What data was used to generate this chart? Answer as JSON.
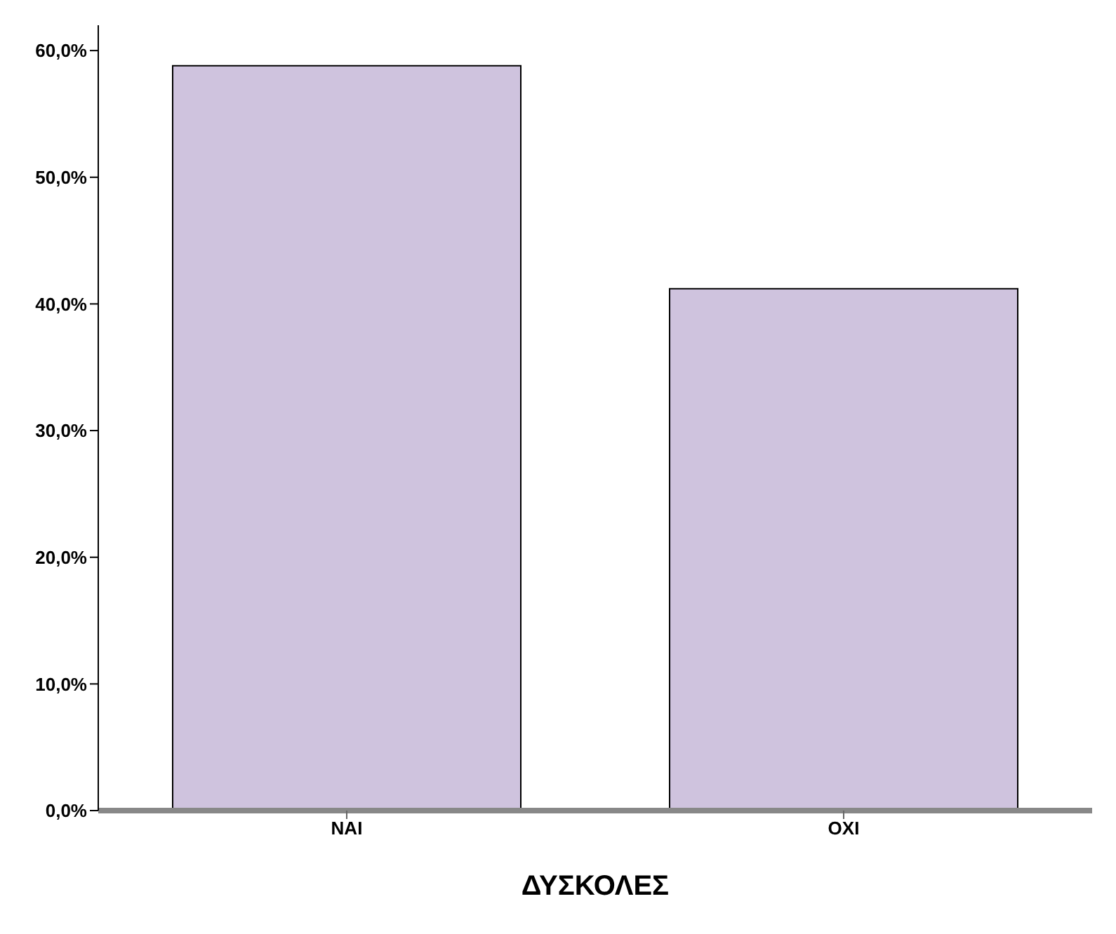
{
  "chart_data": {
    "type": "bar",
    "xlabel": "ΔΥΣΚΟΛΕΣ",
    "categories": [
      "NAI",
      "OXI"
    ],
    "values": [
      58.8,
      41.2
    ],
    "color": "#cfc3de",
    "ylim": [
      0,
      62
    ],
    "yticks": [
      {
        "value": 0,
        "label": "0,0%"
      },
      {
        "value": 10,
        "label": "10,0%"
      },
      {
        "value": 20,
        "label": "20,0%"
      },
      {
        "value": 30,
        "label": "30,0%"
      },
      {
        "value": 40,
        "label": "40,0%"
      },
      {
        "value": 50,
        "label": "50,0%"
      },
      {
        "value": 60,
        "label": "60,0%"
      }
    ]
  }
}
